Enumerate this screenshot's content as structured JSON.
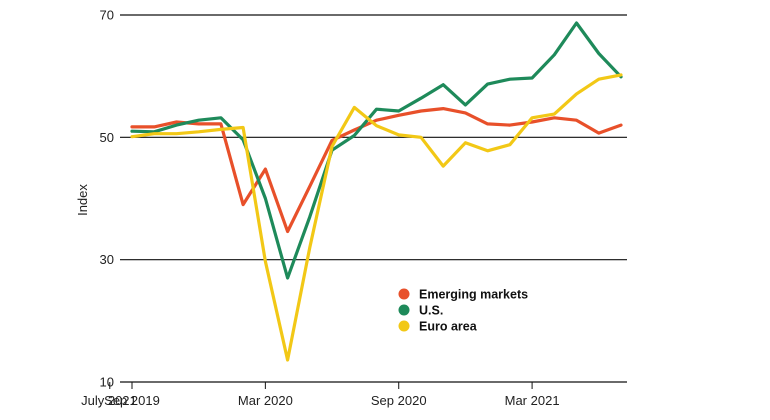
{
  "chart_data": {
    "type": "line",
    "title": "",
    "xlabel": "",
    "ylabel": "Index",
    "ylim": [
      10,
      70
    ],
    "yticks": [
      "10",
      "30",
      "50",
      "70"
    ],
    "grid": "horizontal",
    "legend_position": "bottom-right",
    "x_tick_labels": [
      "Sep 2019",
      "Mar 2020",
      "Sep 2020",
      "Mar 2021",
      "July 2021"
    ],
    "x": [
      "Sep 2019",
      "Oct 2019",
      "Nov 2019",
      "Dec 2019",
      "Jan 2020",
      "Feb 2020",
      "Mar 2020",
      "Apr 2020",
      "May 2020",
      "Jun 2020",
      "Jul 2020",
      "Aug 2020",
      "Sep 2020",
      "Oct 2020",
      "Nov 2020",
      "Dec 2020",
      "Jan 2021",
      "Feb 2021",
      "Mar 2021",
      "Apr 2021",
      "May 2021",
      "Jun 2021",
      "Jul 2021"
    ],
    "series": [
      {
        "name": "Emerging markets",
        "color": "#e8502a",
        "values": [
          51.7,
          51.7,
          52.5,
          52.2,
          52.2,
          39.0,
          44.8,
          34.6,
          42.0,
          49.5,
          51.2,
          52.8,
          53.6,
          54.3,
          54.7,
          54.0,
          52.2,
          52.0,
          52.5,
          53.2,
          52.8,
          50.7,
          52.0
        ]
      },
      {
        "name": "U.S.",
        "color": "#1e8a5a",
        "values": [
          51.0,
          50.9,
          52.0,
          52.8,
          53.2,
          49.6,
          40.0,
          27.0,
          37.0,
          47.9,
          50.3,
          54.6,
          54.3,
          56.4,
          58.6,
          55.3,
          58.7,
          59.5,
          59.7,
          63.5,
          68.7,
          63.7,
          59.9
        ]
      },
      {
        "name": "Euro area",
        "color": "#f2c816",
        "values": [
          50.1,
          50.6,
          50.6,
          50.9,
          51.3,
          51.6,
          29.7,
          13.6,
          32.0,
          48.5,
          54.9,
          51.9,
          50.4,
          50.0,
          45.3,
          49.1,
          47.8,
          48.8,
          53.2,
          53.8,
          57.1,
          59.5,
          60.2
        ]
      }
    ]
  }
}
